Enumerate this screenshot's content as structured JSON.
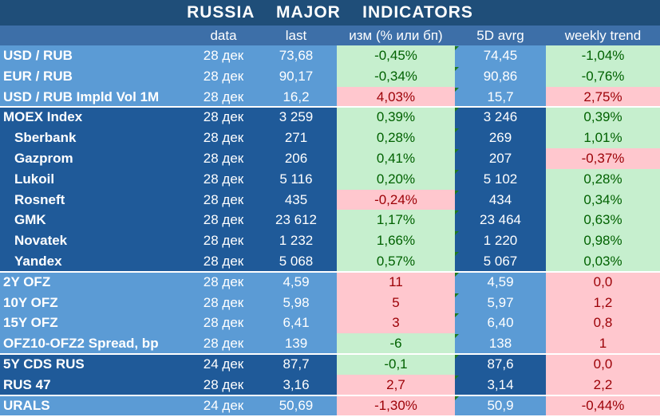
{
  "title": "RUSSIA    MAJOR    INDICATORS",
  "headers": [
    "",
    "data",
    "last",
    "изм (% или бп)",
    "5D avrg",
    "weekly trend"
  ],
  "colors": {
    "title_bg": "#1f4e79",
    "header_bg": "#3d6fa8",
    "dark_blue": "#1f5a99",
    "light_blue": "#5b9bd5",
    "positive_bg": "#c6efce",
    "negative_bg": "#ffc7ce",
    "positive_text": "#006100",
    "negative_text": "#9c0006"
  },
  "rows": [
    {
      "name": "USD / RUB",
      "date": "28 дек",
      "last": "73,68",
      "chg": "-0,45%",
      "avg": "74,45",
      "trend": "-1,04%",
      "chg_s": "pos",
      "trend_s": "pos",
      "sub": false
    },
    {
      "name": "EUR / RUB",
      "date": "28 дек",
      "last": "90,17",
      "chg": "-0,34%",
      "avg": "90,86",
      "trend": "-0,76%",
      "chg_s": "pos",
      "trend_s": "pos",
      "sub": false
    },
    {
      "name": "USD / RUB Impld Vol 1M",
      "date": "28 дек",
      "last": "16,2",
      "chg": "4,03%",
      "avg": "15,7",
      "trend": "2,75%",
      "chg_s": "neg",
      "trend_s": "neg",
      "sub": false
    },
    {
      "name": "MOEX Index",
      "date": "28 дек",
      "last": "3 259",
      "chg": "0,39%",
      "avg": "3 246",
      "trend": "0,39%",
      "chg_s": "pos",
      "trend_s": "pos",
      "sub": false
    },
    {
      "name": "Sberbank",
      "date": "28 дек",
      "last": "271",
      "chg": "0,28%",
      "avg": "269",
      "trend": "1,01%",
      "chg_s": "pos",
      "trend_s": "pos",
      "sub": true
    },
    {
      "name": "Gazprom",
      "date": "28 дек",
      "last": "206",
      "chg": "0,41%",
      "avg": "207",
      "trend": "-0,37%",
      "chg_s": "pos",
      "trend_s": "neg",
      "sub": true
    },
    {
      "name": "Lukoil",
      "date": "28 дек",
      "last": "5 116",
      "chg": "0,20%",
      "avg": "5 102",
      "trend": "0,28%",
      "chg_s": "pos",
      "trend_s": "pos",
      "sub": true
    },
    {
      "name": "Rosneft",
      "date": "28 дек",
      "last": "435",
      "chg": "-0,24%",
      "avg": "434",
      "trend": "0,34%",
      "chg_s": "neg",
      "trend_s": "pos",
      "sub": true
    },
    {
      "name": "GMK",
      "date": "28 дек",
      "last": "23 612",
      "chg": "1,17%",
      "avg": "23 464",
      "trend": "0,63%",
      "chg_s": "pos",
      "trend_s": "pos",
      "sub": true
    },
    {
      "name": "Novatek",
      "date": "28 дек",
      "last": "1 232",
      "chg": "1,66%",
      "avg": "1 220",
      "trend": "0,98%",
      "chg_s": "pos",
      "trend_s": "pos",
      "sub": true
    },
    {
      "name": "Yandex",
      "date": "28 дек",
      "last": "5 068",
      "chg": "0,57%",
      "avg": "5 067",
      "trend": "0,03%",
      "chg_s": "pos",
      "trend_s": "pos",
      "sub": true
    },
    {
      "name": "2Y OFZ",
      "date": "28 дек",
      "last": "4,59",
      "chg": "11",
      "avg": "4,59",
      "trend": "0,0",
      "chg_s": "neg",
      "trend_s": "neg",
      "sub": false
    },
    {
      "name": "10Y OFZ",
      "date": "28 дек",
      "last": "5,98",
      "chg": "5",
      "avg": "5,97",
      "trend": "1,2",
      "chg_s": "neg",
      "trend_s": "neg",
      "sub": false
    },
    {
      "name": "15Y OFZ",
      "date": "28 дек",
      "last": "6,41",
      "chg": "3",
      "avg": "6,40",
      "trend": "0,8",
      "chg_s": "neg",
      "trend_s": "neg",
      "sub": false
    },
    {
      "name": "OFZ10-OFZ2 Spread, bp",
      "date": "28 дек",
      "last": "139",
      "chg": "-6",
      "avg": "138",
      "trend": "1",
      "chg_s": "pos",
      "trend_s": "neg",
      "sub": false
    },
    {
      "name": "5Y CDS RUS",
      "date": "24 дек",
      "last": "87,7",
      "chg": "-0,1",
      "avg": "87,6",
      "trend": "0,0",
      "chg_s": "pos",
      "trend_s": "neg",
      "sub": false
    },
    {
      "name": "RUS 47",
      "date": "28 дек",
      "last": "3,16",
      "chg": "2,7",
      "avg": "3,14",
      "trend": "2,2",
      "chg_s": "neg",
      "trend_s": "neg",
      "sub": false
    },
    {
      "name": "URALS",
      "date": "24 дек",
      "last": "50,69",
      "chg": "-1,30%",
      "avg": "50,9",
      "trend": "-0,44%",
      "chg_s": "neg",
      "trend_s": "neg",
      "sub": false
    }
  ]
}
